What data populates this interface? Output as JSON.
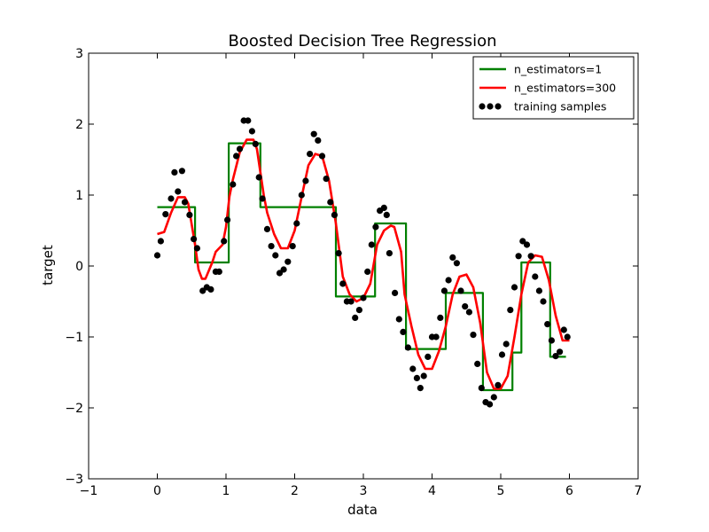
{
  "chart_data": {
    "type": "line",
    "title": "Boosted Decision Tree Regression",
    "xlabel": "data",
    "ylabel": "target",
    "xlim": [
      -1,
      7
    ],
    "ylim": [
      -3,
      3
    ],
    "xticks": [
      -1,
      0,
      1,
      2,
      3,
      4,
      5,
      6,
      7
    ],
    "yticks": [
      -3,
      -2,
      -1,
      0,
      1,
      2,
      3
    ],
    "xtick_labels": [
      "−1",
      "0",
      "1",
      "2",
      "3",
      "4",
      "5",
      "6",
      "7"
    ],
    "ytick_labels": [
      "−3",
      "−2",
      "−1",
      "0",
      "1",
      "2",
      "3"
    ],
    "grid": false,
    "legend": {
      "position": "top-right"
    },
    "series": [
      {
        "name": "n_estimators=1",
        "kind": "step",
        "color": "#008000",
        "x": [
          0.0,
          0.55,
          0.55,
          1.04,
          1.04,
          1.5,
          1.5,
          2.6,
          2.6,
          3.17,
          3.17,
          3.62,
          3.62,
          4.2,
          4.2,
          4.74,
          4.74,
          5.17,
          5.17,
          5.3,
          5.3,
          5.72,
          5.72,
          5.95
        ],
        "y": [
          0.83,
          0.83,
          0.05,
          0.05,
          1.73,
          1.73,
          0.83,
          0.83,
          -0.43,
          -0.43,
          0.6,
          0.6,
          -1.17,
          -1.17,
          -0.38,
          -0.38,
          -1.75,
          -1.75,
          -1.22,
          -1.22,
          0.05,
          0.05,
          -1.28,
          -1.28
        ]
      },
      {
        "name": "n_estimators=300",
        "kind": "line",
        "color": "#ff0000",
        "x": [
          0.0,
          0.1,
          0.2,
          0.3,
          0.4,
          0.45,
          0.55,
          0.6,
          0.65,
          0.7,
          0.8,
          0.85,
          0.95,
          1.0,
          1.05,
          1.1,
          1.2,
          1.3,
          1.4,
          1.45,
          1.55,
          1.6,
          1.7,
          1.8,
          1.9,
          2.0,
          2.1,
          2.2,
          2.3,
          2.4,
          2.5,
          2.6,
          2.7,
          2.8,
          2.9,
          3.0,
          3.1,
          3.2,
          3.3,
          3.4,
          3.45,
          3.55,
          3.6,
          3.7,
          3.8,
          3.9,
          4.0,
          4.1,
          4.2,
          4.3,
          4.4,
          4.5,
          4.6,
          4.7,
          4.8,
          4.9,
          5.0,
          5.1,
          5.2,
          5.3,
          5.4,
          5.5,
          5.6,
          5.7,
          5.8,
          5.9,
          6.0
        ],
        "y": [
          0.45,
          0.48,
          0.75,
          0.97,
          0.97,
          0.88,
          0.3,
          -0.05,
          -0.18,
          -0.18,
          0.05,
          0.2,
          0.3,
          0.55,
          0.98,
          1.22,
          1.6,
          1.78,
          1.78,
          1.65,
          1.0,
          0.75,
          0.45,
          0.25,
          0.25,
          0.5,
          0.97,
          1.42,
          1.58,
          1.55,
          1.2,
          0.6,
          -0.15,
          -0.4,
          -0.5,
          -0.45,
          -0.25,
          0.3,
          0.5,
          0.57,
          0.55,
          0.2,
          -0.4,
          -0.85,
          -1.25,
          -1.45,
          -1.45,
          -1.2,
          -0.85,
          -0.4,
          -0.15,
          -0.12,
          -0.3,
          -0.8,
          -1.5,
          -1.73,
          -1.73,
          -1.55,
          -1.0,
          -0.4,
          0.05,
          0.15,
          0.13,
          -0.2,
          -0.7,
          -1.05,
          -1.05
        ]
      },
      {
        "name": "training samples",
        "kind": "scatter",
        "color": "#000000",
        "x": [
          0.0,
          0.05,
          0.12,
          0.2,
          0.25,
          0.3,
          0.36,
          0.4,
          0.47,
          0.53,
          0.58,
          0.66,
          0.72,
          0.78,
          0.85,
          0.9,
          0.97,
          1.02,
          1.1,
          1.15,
          1.2,
          1.26,
          1.32,
          1.38,
          1.43,
          1.48,
          1.53,
          1.6,
          1.66,
          1.72,
          1.78,
          1.84,
          1.9,
          1.97,
          2.03,
          2.1,
          2.16,
          2.22,
          2.28,
          2.34,
          2.4,
          2.46,
          2.52,
          2.58,
          2.64,
          2.7,
          2.76,
          2.82,
          2.88,
          2.94,
          3.0,
          3.06,
          3.12,
          3.18,
          3.24,
          3.3,
          3.34,
          3.38,
          3.46,
          3.52,
          3.58,
          3.65,
          3.72,
          3.78,
          3.83,
          3.88,
          3.94,
          4.0,
          4.06,
          4.12,
          4.18,
          4.24,
          4.3,
          4.36,
          4.42,
          4.48,
          4.54,
          4.6,
          4.66,
          4.72,
          4.78,
          4.84,
          4.9,
          4.96,
          5.02,
          5.08,
          5.14,
          5.2,
          5.26,
          5.32,
          5.38,
          5.44,
          5.5,
          5.56,
          5.62,
          5.68,
          5.74,
          5.8,
          5.86,
          5.92,
          5.97
        ],
        "y": [
          0.15,
          0.35,
          0.73,
          0.95,
          1.32,
          1.05,
          1.34,
          0.9,
          0.72,
          0.38,
          0.25,
          -0.35,
          -0.3,
          -0.33,
          -0.08,
          -0.08,
          0.35,
          0.65,
          1.15,
          1.55,
          1.65,
          2.05,
          2.05,
          1.9,
          1.72,
          1.25,
          0.95,
          0.52,
          0.28,
          0.15,
          -0.1,
          -0.05,
          0.06,
          0.28,
          0.6,
          1.0,
          1.2,
          1.58,
          1.86,
          1.77,
          1.55,
          1.23,
          0.9,
          0.72,
          0.18,
          -0.25,
          -0.5,
          -0.5,
          -0.73,
          -0.62,
          -0.45,
          -0.08,
          0.3,
          0.55,
          0.78,
          0.82,
          0.72,
          0.18,
          -0.38,
          -0.75,
          -0.93,
          -1.15,
          -1.45,
          -1.58,
          -1.72,
          -1.55,
          -1.28,
          -1.0,
          -1.0,
          -0.73,
          -0.35,
          -0.2,
          0.12,
          0.04,
          -0.35,
          -0.57,
          -0.65,
          -0.97,
          -1.38,
          -1.72,
          -1.92,
          -1.95,
          -1.85,
          -1.68,
          -1.25,
          -1.1,
          -0.62,
          -0.3,
          0.14,
          0.35,
          0.3,
          0.14,
          -0.15,
          -0.35,
          -0.5,
          -0.82,
          -1.05,
          -1.27,
          -1.21,
          -0.9,
          -1.0
        ]
      }
    ]
  }
}
